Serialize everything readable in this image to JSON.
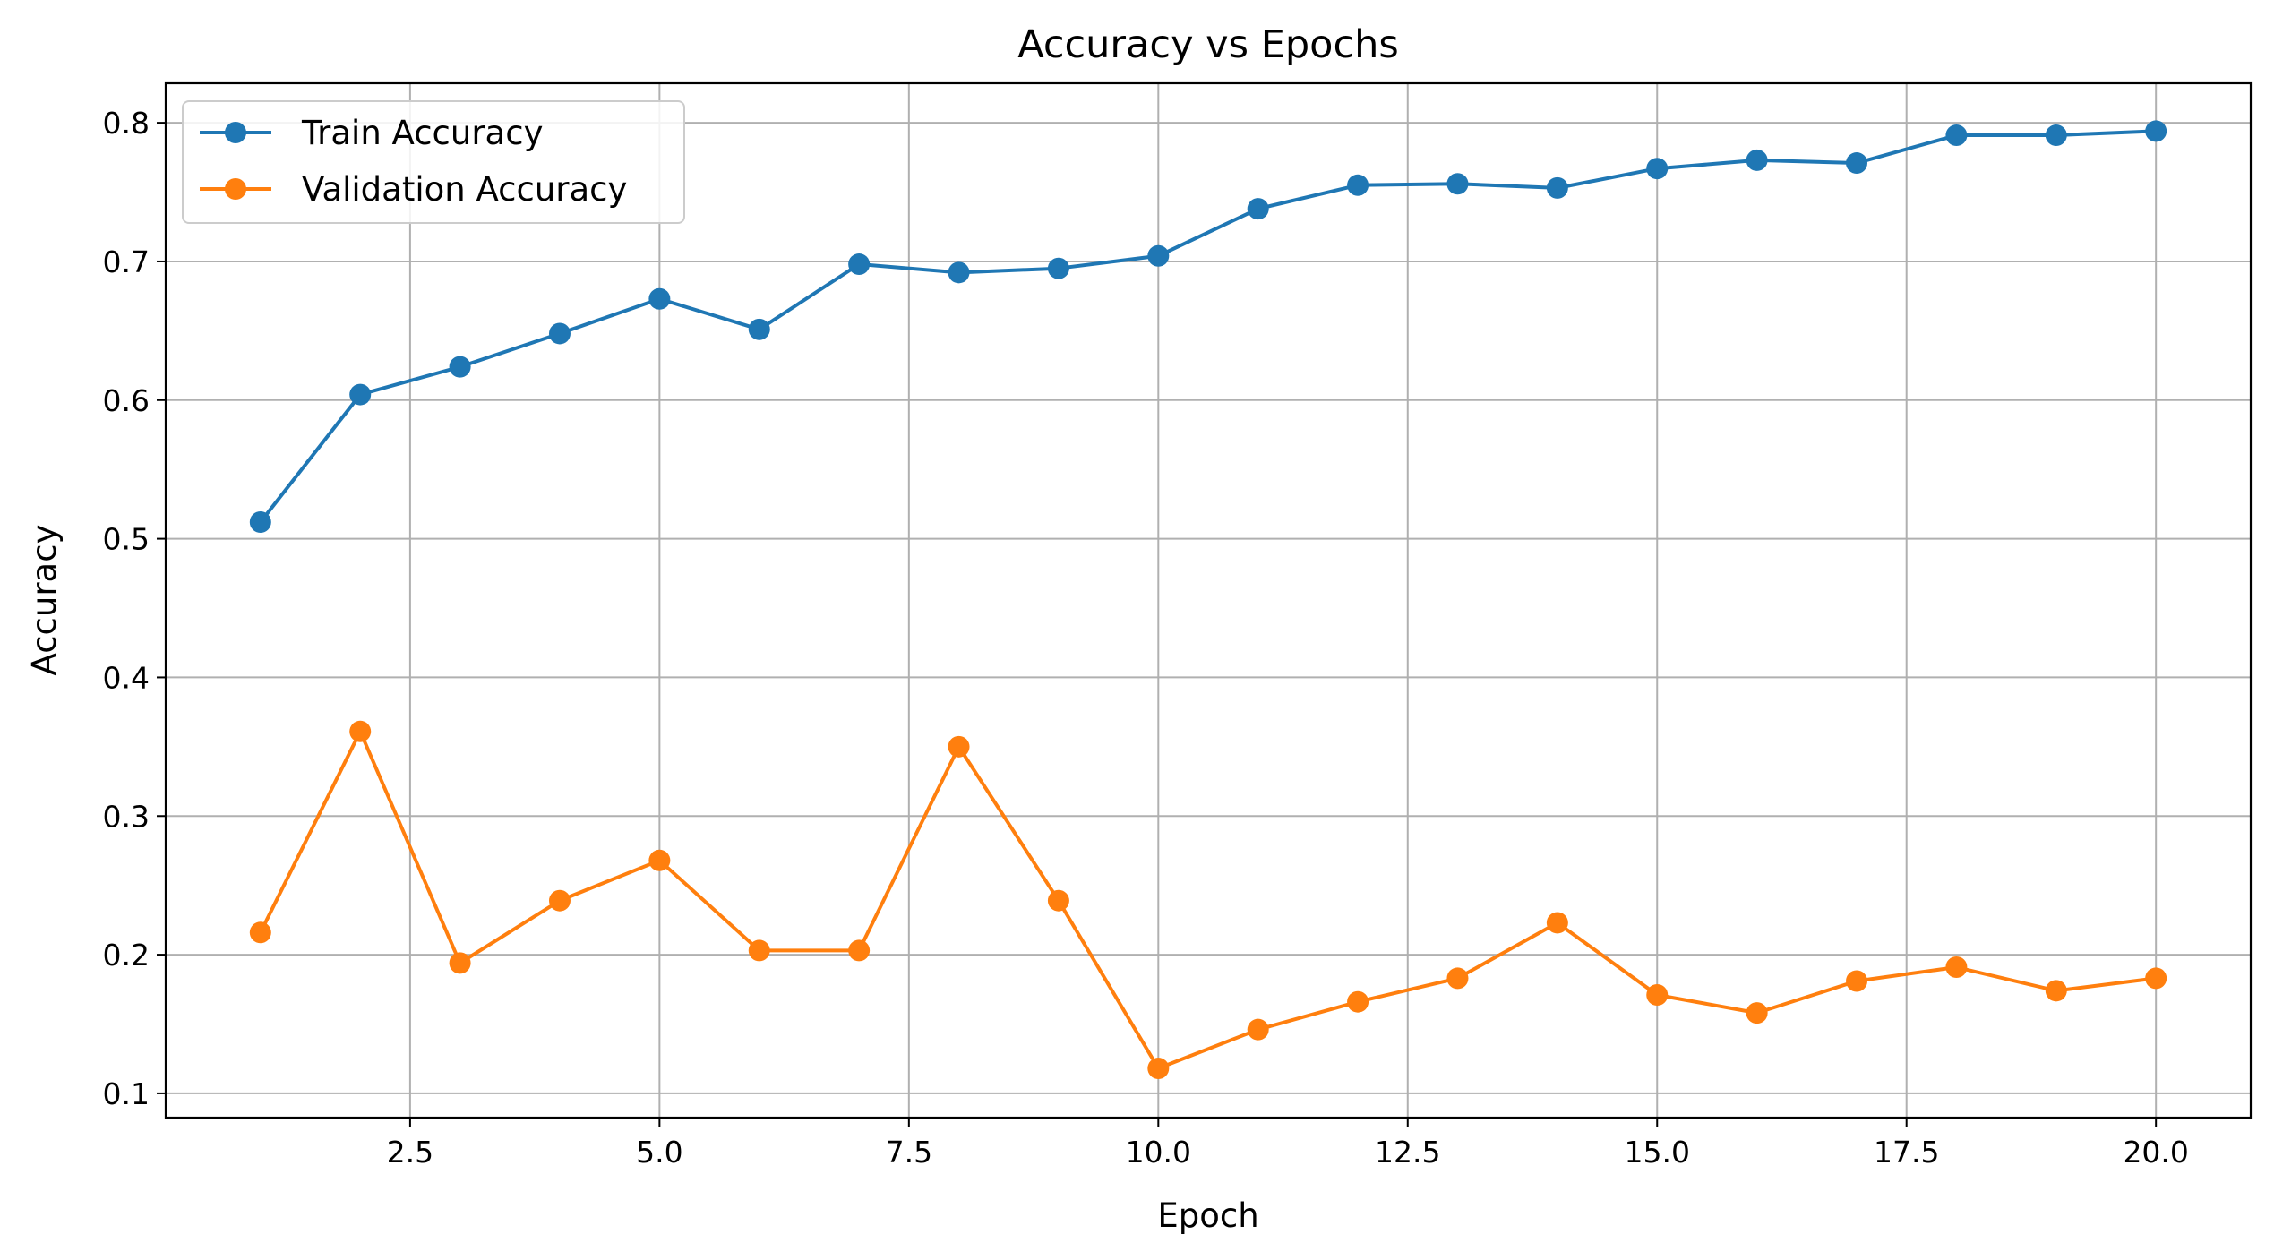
{
  "chart_data": {
    "type": "line",
    "title": "Accuracy vs Epochs",
    "xlabel": "Epoch",
    "ylabel": "Accuracy",
    "xlim": [
      0.05,
      20.95
    ],
    "ylim": [
      0.0825,
      0.8285
    ],
    "x_ticks": [
      2.5,
      5.0,
      7.5,
      10.0,
      12.5,
      15.0,
      17.5,
      20.0
    ],
    "x_tick_labels": [
      "2.5",
      "5.0",
      "7.5",
      "10.0",
      "12.5",
      "15.0",
      "17.5",
      "20.0"
    ],
    "y_ticks": [
      0.1,
      0.2,
      0.3,
      0.4,
      0.5,
      0.6,
      0.7,
      0.8
    ],
    "y_tick_labels": [
      "0.1",
      "0.2",
      "0.3",
      "0.4",
      "0.5",
      "0.6",
      "0.7",
      "0.8"
    ],
    "grid": true,
    "legend_position": "upper-left",
    "x": [
      1,
      2,
      3,
      4,
      5,
      6,
      7,
      8,
      9,
      10,
      11,
      12,
      13,
      14,
      15,
      16,
      17,
      18,
      19,
      20
    ],
    "series": [
      {
        "name": "Train Accuracy",
        "color": "#1f77b4",
        "marker": "circle",
        "values": [
          0.512,
          0.604,
          0.624,
          0.648,
          0.673,
          0.651,
          0.698,
          0.692,
          0.695,
          0.704,
          0.738,
          0.755,
          0.756,
          0.753,
          0.767,
          0.773,
          0.771,
          0.791,
          0.791,
          0.794
        ]
      },
      {
        "name": "Validation Accuracy",
        "color": "#ff7f0e",
        "marker": "circle",
        "values": [
          0.216,
          0.361,
          0.194,
          0.239,
          0.268,
          0.203,
          0.203,
          0.35,
          0.239,
          0.118,
          0.146,
          0.166,
          0.183,
          0.223,
          0.171,
          0.158,
          0.181,
          0.191,
          0.174,
          0.183
        ]
      }
    ]
  }
}
